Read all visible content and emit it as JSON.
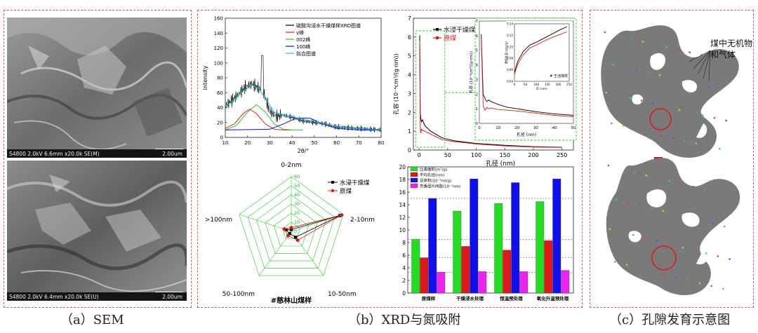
{
  "captions": {
    "a": "（a）SEM",
    "b": "（b）XRD与氮吸附",
    "c": "（c）孔隙发育示意图"
  },
  "sem": {
    "top_info": "S4800 2.0kV 6.6mm x20.0k SE(M)",
    "bottom_info": "S4800 2.0kV 6.4mm x20.0k SE(U)",
    "scale": "2.00um"
  },
  "colors": {
    "frame": "#d06060",
    "green": "#22dd22",
    "red": "#e01818",
    "blue": "#1010ee",
    "magenta": "#ee22ee",
    "shape": "#7a7a7a"
  },
  "schematic": {
    "label": "煤中无机物和气体",
    "arrow": "down-arrow"
  },
  "chart_data": [
    {
      "type": "line",
      "ylabel": "intensity",
      "xlabel": "2θ/°",
      "xlim": [
        10,
        80
      ],
      "ylim": [
        0,
        160
      ],
      "xticks": [
        10,
        20,
        30,
        40,
        50,
        60,
        70,
        80
      ],
      "yticks": [
        0,
        20,
        40,
        60,
        80,
        100,
        120,
        140,
        160
      ],
      "legend": [
        "硫酸沟浸水干燥煤样XRD图谱",
        "γ峰",
        "002峰",
        "100峰",
        "拟合图谱"
      ],
      "legend_colors": [
        "#000000",
        "#e01818",
        "#22cc22",
        "#1010ee",
        "#00c8e0"
      ],
      "series": [
        {
          "name": "硫酸沟浸水干燥煤样XRD图谱",
          "x": [
            10,
            13,
            16,
            19,
            22,
            25,
            27,
            30,
            33,
            36,
            40,
            45,
            50,
            55,
            60,
            65,
            70,
            75,
            80
          ],
          "y": [
            42,
            50,
            58,
            68,
            72,
            66,
            62,
            35,
            28,
            30,
            27,
            22,
            20,
            18,
            14,
            13,
            12,
            11,
            10
          ]
        },
        {
          "name": "γ峰",
          "x": [
            10,
            14,
            18,
            21,
            24,
            28,
            32,
            36,
            40
          ],
          "y": [
            12,
            18,
            32,
            38,
            32,
            18,
            11,
            10,
            10
          ]
        },
        {
          "name": "002峰",
          "x": [
            10,
            15,
            20,
            24,
            28,
            32,
            36,
            40,
            45
          ],
          "y": [
            10,
            16,
            34,
            44,
            34,
            18,
            11,
            10,
            10
          ]
        },
        {
          "name": "100峰",
          "x": [
            10,
            30,
            36,
            42,
            48,
            54,
            60,
            70,
            80
          ],
          "y": [
            10,
            11,
            18,
            26,
            26,
            18,
            12,
            10,
            10
          ]
        },
        {
          "name": "拟合图谱",
          "x": [
            10,
            14,
            18,
            22,
            25,
            28,
            32,
            36,
            40,
            45,
            50,
            55,
            60,
            65,
            70,
            75,
            80
          ],
          "y": [
            42,
            50,
            62,
            70,
            66,
            52,
            34,
            30,
            28,
            24,
            22,
            18,
            15,
            13,
            12,
            11,
            10
          ]
        }
      ]
    },
    {
      "type": "line",
      "xlabel": "孔径 (nm)",
      "ylabel": "孔容 (10⁻⁴cm³/(g·nm))",
      "xlim": [
        -10,
        270
      ],
      "ylim": [
        0,
        7
      ],
      "xticks": [
        0,
        50,
        100,
        150,
        200,
        250
      ],
      "yticks": [
        0,
        1,
        2,
        3,
        4,
        5,
        6,
        7
      ],
      "legend": [
        "水浸干燥煤",
        "原煤"
      ],
      "series": [
        {
          "name": "水浸干燥煤",
          "color": "#000000",
          "x": [
            1,
            2,
            3,
            4,
            6,
            10,
            20,
            40,
            60,
            100,
            150,
            200,
            250
          ],
          "y": [
            6.1,
            2.0,
            1.7,
            1.5,
            1.6,
            1.3,
            1.0,
            0.65,
            0.5,
            0.35,
            0.25,
            0.18,
            0.15
          ]
        },
        {
          "name": "原煤",
          "color": "#e01818",
          "x": [
            1,
            2,
            3,
            4,
            6,
            10,
            20,
            40,
            60,
            100,
            150,
            200,
            250
          ],
          "y": [
            5.8,
            1.2,
            0.9,
            1.1,
            1.05,
            1.0,
            0.85,
            0.55,
            0.45,
            0.32,
            0.22,
            0.16,
            0.14
          ]
        }
      ],
      "inset_main": {
        "xlabel": "孔径 (nm)",
        "ylabel": "孔容 (10⁻⁴cm³/(g·nm))",
        "xlim": [
          0,
          50
        ],
        "ylim": [
          0,
          7
        ],
        "xticks": [
          0,
          10,
          20,
          30,
          40,
          50
        ],
        "yticks": [
          0,
          1,
          2,
          3,
          4,
          5,
          6,
          7
        ],
        "series": [
          {
            "name": "水浸干燥煤",
            "x": [
              1,
              2,
              3,
              4,
              5,
              6,
              8,
              10,
              15,
              20,
              30,
              40,
              50
            ],
            "y": [
              6.1,
              2.0,
              1.7,
              1.5,
              1.6,
              1.5,
              1.4,
              1.3,
              1.1,
              1.0,
              0.8,
              0.65,
              0.55
            ]
          },
          {
            "name": "原煤",
            "x": [
              1,
              2,
              3,
              4,
              5,
              6,
              8,
              10,
              15,
              20,
              30,
              40,
              50
            ],
            "y": [
              5.8,
              1.2,
              0.9,
              1.1,
              1.0,
              1.05,
              1.0,
              0.95,
              0.9,
              0.85,
              0.7,
              0.55,
              0.45
            ]
          }
        ]
      },
      "inset_small": {
        "xlabel": "D (nm)",
        "ylabel": "累积孔容 (cm³/g)",
        "note": "# 王池煤样",
        "xlim": [
          0,
          250
        ],
        "ylim": [
          0.04,
          0.14
        ],
        "xticks": [
          0,
          50,
          100,
          150,
          200,
          250
        ],
        "yticks": [
          0.04,
          0.06,
          0.08,
          0.1,
          0.12,
          0.14
        ],
        "series": [
          {
            "name": "水浸干燥煤",
            "color": "#000000",
            "x": [
              0,
              15,
              40,
              70,
              100,
              130,
              170,
              210,
              240
            ],
            "y": [
              0.056,
              0.075,
              0.092,
              0.103,
              0.108,
              0.114,
              0.122,
              0.13,
              0.135
            ]
          },
          {
            "name": "原煤",
            "color": "#e01818",
            "x": [
              0,
              15,
              40,
              70,
              100,
              130,
              170,
              210,
              240
            ],
            "y": [
              0.052,
              0.07,
              0.086,
              0.098,
              0.103,
              0.109,
              0.116,
              0.122,
              0.126
            ]
          }
        ]
      }
    },
    {
      "type": "radar",
      "title": "0-2nm",
      "axes": [
        "0-2nm",
        "2-10nm",
        "10-50nm",
        "50-100nm",
        ">100nm"
      ],
      "rticks": [
        0,
        10,
        20,
        30,
        40,
        50,
        60
      ],
      "rmax": 60,
      "legend": [
        "水浸干燥煤",
        "原煤"
      ],
      "note": "#慈林山煤样",
      "series": [
        {
          "name": "水浸干燥煤",
          "color": "#000000",
          "values": [
            2,
            56,
            8,
            3,
            6
          ]
        },
        {
          "name": "原煤",
          "color": "#e01818",
          "values": [
            4,
            58,
            12,
            6,
            8
          ]
        }
      ]
    },
    {
      "type": "bar",
      "categories": [
        "原煤样",
        "干燥浸水处理",
        "恒温预处理",
        "氧化升温预处理"
      ],
      "ylim": [
        0,
        20
      ],
      "yticks": [
        0,
        2,
        4,
        6,
        8,
        10,
        12,
        14,
        16,
        18,
        20
      ],
      "legend": [
        "比表面积(m²/g)",
        "平均孔径(nm)",
        "总体积(10⁻³ml/g)",
        "芳香层片间距(10⁻¹nm)"
      ],
      "series": [
        {
          "name": "比表面积(m²/g)",
          "color": "#22dd22",
          "values": [
            8.5,
            13.0,
            14.2,
            14.5
          ]
        },
        {
          "name": "平均孔径(nm)",
          "color": "#e01818",
          "values": [
            5.6,
            7.4,
            6.8,
            8.3
          ]
        },
        {
          "name": "总体积(10⁻³ml/g)",
          "color": "#1010ee",
          "values": [
            15.0,
            18.1,
            17.5,
            18.1
          ]
        },
        {
          "name": "芳香层片间距(10⁻¹nm)",
          "color": "#ee22ee",
          "values": [
            3.3,
            3.4,
            3.4,
            3.6
          ]
        }
      ],
      "reference_lines": [
        15.0,
        8.5,
        5.6,
        3.3
      ]
    }
  ]
}
